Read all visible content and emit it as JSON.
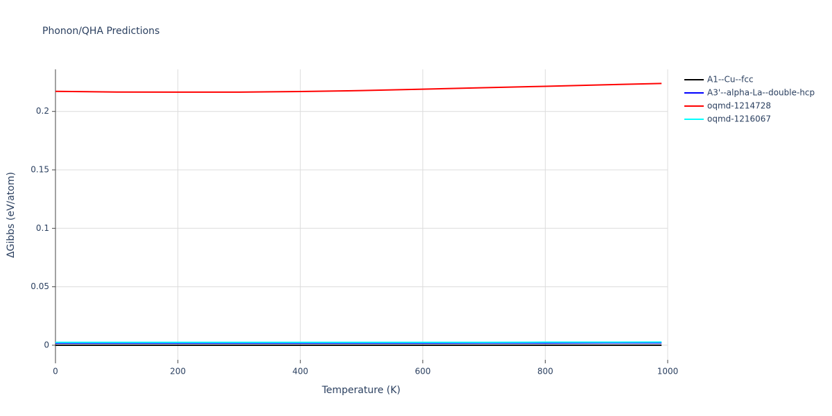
{
  "chart_data": {
    "type": "line",
    "title": "Phonon/QHA Predictions",
    "x_label": "Temperature (K)",
    "y_label": "ΔGibbs (eV/atom)",
    "x": [
      0,
      100,
      200,
      300,
      400,
      500,
      600,
      700,
      800,
      900,
      990
    ],
    "series": [
      {
        "name": "A1--Cu--fcc",
        "color": "#000000",
        "values": [
          0,
          0,
          0,
          0,
          0,
          0,
          0,
          0,
          0,
          0,
          0
        ]
      },
      {
        "name": "A3'--alpha-La--double-hcp",
        "color": "#0000ff",
        "values": [
          0.0018,
          0.0018,
          0.0018,
          0.0018,
          0.0018,
          0.0018,
          0.0018,
          0.0019,
          0.0019,
          0.002,
          0.002
        ]
      },
      {
        "name": "oqmd-1214728",
        "color": "#ff0000",
        "values": [
          0.2172,
          0.2166,
          0.2165,
          0.2165,
          0.217,
          0.2178,
          0.219,
          0.2203,
          0.2215,
          0.2228,
          0.2239
        ]
      },
      {
        "name": "oqmd-1216067",
        "color": "#00ffff",
        "values": [
          0.0025,
          0.0025,
          0.0025,
          0.0025,
          0.0025,
          0.0025,
          0.0025,
          0.0025,
          0.0026,
          0.0026,
          0.0027
        ]
      }
    ],
    "xlim": [
      0,
      1000
    ],
    "xticks": [
      0,
      200,
      400,
      600,
      800,
      1000
    ],
    "ylim": [
      -0.0125,
      0.236
    ],
    "yticks": [
      0,
      0.05,
      0.1,
      0.15,
      0.2
    ],
    "grid": true,
    "legend": "right"
  }
}
